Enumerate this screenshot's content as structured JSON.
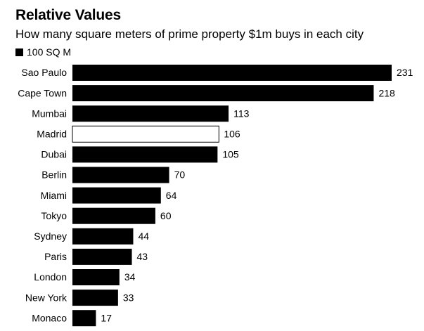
{
  "chart_data": {
    "type": "bar",
    "orientation": "horizontal",
    "title": "Relative Values",
    "subtitle": "How many square meters of prime property $1m buys in each city",
    "legend": [
      {
        "label": "100 SQ M",
        "color": "#000000"
      }
    ],
    "legend_placement": "top-left",
    "grid": false,
    "categories": [
      "Sao Paulo",
      "Cape Town",
      "Mumbai",
      "Madrid",
      "Dubai",
      "Berlin",
      "Miami",
      "Tokyo",
      "Sydney",
      "Paris",
      "London",
      "New York",
      "Monaco"
    ],
    "values": [
      231,
      218,
      113,
      106,
      105,
      70,
      64,
      60,
      44,
      43,
      34,
      33,
      17
    ],
    "value_labels": [
      "231",
      "218",
      "113",
      "106",
      "105",
      "70",
      "64",
      "60",
      "44",
      "43",
      "34",
      "33",
      "17"
    ],
    "highlight": "Madrid",
    "bar_color": "#000000",
    "highlight_fill": "#ffffff",
    "xlim": [
      0,
      231
    ]
  }
}
